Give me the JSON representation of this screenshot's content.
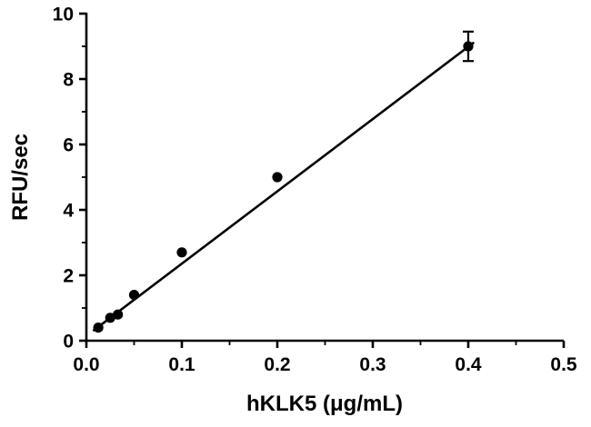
{
  "chart_data": {
    "type": "scatter",
    "title": "",
    "xlabel": "hKLK5 (μg/mL)",
    "ylabel": "RFU/sec",
    "xlim": [
      0,
      0.5
    ],
    "ylim": [
      0,
      10
    ],
    "grid": false,
    "legend": "none",
    "axis_color": "#000000",
    "marker_color": "#000000",
    "line_color": "#000000",
    "x_ticks": [
      0.0,
      0.1,
      0.2,
      0.3,
      0.4,
      0.5
    ],
    "x_tick_labels": [
      "0.0",
      "0.1",
      "0.2",
      "0.3",
      "0.4",
      "0.5"
    ],
    "x_minor_ticks": [
      0.05,
      0.15,
      0.25,
      0.35,
      0.45
    ],
    "y_ticks": [
      0,
      2,
      4,
      6,
      8,
      10
    ],
    "y_tick_labels": [
      "0",
      "2",
      "4",
      "6",
      "8",
      "10"
    ],
    "y_minor_ticks": [
      1,
      3,
      5,
      7,
      9
    ],
    "points": [
      {
        "x": 0.0125,
        "y": 0.4
      },
      {
        "x": 0.025,
        "y": 0.7
      },
      {
        "x": 0.033,
        "y": 0.8
      },
      {
        "x": 0.05,
        "y": 1.4
      },
      {
        "x": 0.1,
        "y": 2.7
      },
      {
        "x": 0.2,
        "y": 5.0
      },
      {
        "x": 0.4,
        "y": 9.0,
        "error": 0.45
      }
    ],
    "fit_line": {
      "x1": 0.007,
      "y1": 0.3,
      "x2": 0.406,
      "y2": 9.12
    }
  }
}
